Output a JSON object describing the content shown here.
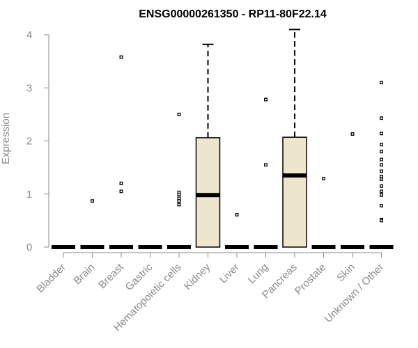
{
  "chart_data": {
    "type": "box",
    "title": "ENSG00000261350 - RP11-80F22.14",
    "ylabel": "Expression",
    "xlabel": "",
    "ylim": [
      0,
      4.1
    ],
    "yticks": [
      0,
      1,
      2,
      3,
      4
    ],
    "grid": false,
    "colors": {
      "box_fill": "#ede6cc",
      "stroke": "#000000",
      "axis": "#8a8a8a"
    },
    "categories": [
      "Bladder",
      "Brain",
      "Breast",
      "Gastric",
      "Hematopoietic cells",
      "Kidney",
      "Liver",
      "Lung",
      "Pancreas",
      "Prostate",
      "Skin",
      "Unknown / Other"
    ],
    "boxes": [
      {
        "q1": 0,
        "median": 0,
        "q3": 0,
        "whisker_low": 0,
        "whisker_high": 0,
        "outliers": []
      },
      {
        "q1": 0,
        "median": 0,
        "q3": 0,
        "whisker_low": 0,
        "whisker_high": 0,
        "outliers": [
          0.87
        ]
      },
      {
        "q1": 0,
        "median": 0,
        "q3": 0,
        "whisker_low": 0,
        "whisker_high": 0,
        "outliers": [
          3.58,
          1.2,
          1.05
        ]
      },
      {
        "q1": 0,
        "median": 0,
        "q3": 0,
        "whisker_low": 0,
        "whisker_high": 0,
        "outliers": []
      },
      {
        "q1": 0,
        "median": 0,
        "q3": 0,
        "whisker_low": 0,
        "whisker_high": 0,
        "outliers": [
          2.5,
          1.03,
          0.99,
          0.92,
          0.87,
          0.8
        ]
      },
      {
        "q1": 0,
        "median": 0.98,
        "q3": 2.06,
        "whisker_low": 0,
        "whisker_high": 3.82,
        "outliers": []
      },
      {
        "q1": 0,
        "median": 0,
        "q3": 0,
        "whisker_low": 0,
        "whisker_high": 0,
        "outliers": [
          0.61
        ]
      },
      {
        "q1": 0,
        "median": 0,
        "q3": 0,
        "whisker_low": 0,
        "whisker_high": 0,
        "outliers": [
          2.78,
          1.55
        ]
      },
      {
        "q1": 0,
        "median": 1.35,
        "q3": 2.07,
        "whisker_low": 0,
        "whisker_high": 4.1,
        "outliers": []
      },
      {
        "q1": 0,
        "median": 0,
        "q3": 0,
        "whisker_low": 0,
        "whisker_high": 0,
        "outliers": [
          1.29
        ]
      },
      {
        "q1": 0,
        "median": 0,
        "q3": 0,
        "whisker_low": 0,
        "whisker_high": 0,
        "outliers": [
          2.13
        ]
      },
      {
        "q1": 0,
        "median": 0,
        "q3": 0,
        "whisker_low": 0,
        "whisker_high": 0,
        "outliers": [
          3.1,
          2.43,
          2.14,
          1.93,
          1.8,
          1.65,
          1.55,
          1.43,
          1.33,
          1.28,
          1.15,
          1.05,
          0.98,
          0.78,
          0.52,
          0.5
        ]
      }
    ]
  }
}
